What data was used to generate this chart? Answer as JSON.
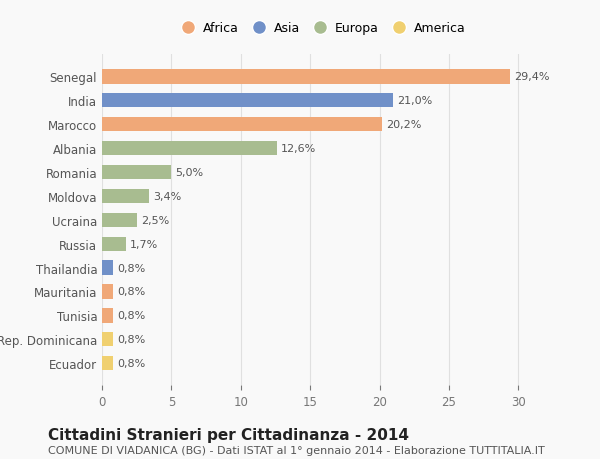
{
  "categories": [
    "Ecuador",
    "Rep. Dominicana",
    "Tunisia",
    "Mauritania",
    "Thailandia",
    "Russia",
    "Ucraina",
    "Moldova",
    "Romania",
    "Albania",
    "Marocco",
    "India",
    "Senegal"
  ],
  "values": [
    0.8,
    0.8,
    0.8,
    0.8,
    0.8,
    1.7,
    2.5,
    3.4,
    5.0,
    12.6,
    20.2,
    21.0,
    29.4
  ],
  "continents": [
    "America",
    "America",
    "Africa",
    "Africa",
    "Asia",
    "Europa",
    "Europa",
    "Europa",
    "Europa",
    "Europa",
    "Africa",
    "Asia",
    "Africa"
  ],
  "labels": [
    "0,8%",
    "0,8%",
    "0,8%",
    "0,8%",
    "0,8%",
    "1,7%",
    "2,5%",
    "3,4%",
    "5,0%",
    "12,6%",
    "20,2%",
    "21,0%",
    "29,4%"
  ],
  "colors": {
    "Africa": "#F0A878",
    "Asia": "#7090C8",
    "Europa": "#A8BC90",
    "America": "#F0D070"
  },
  "legend_order": [
    "Africa",
    "Asia",
    "Europa",
    "America"
  ],
  "title": "Cittadini Stranieri per Cittadinanza - 2014",
  "subtitle": "COMUNE DI VIADANICA (BG) - Dati ISTAT al 1° gennaio 2014 - Elaborazione TUTTITALIA.IT",
  "xlim": [
    0,
    32
  ],
  "xticks": [
    0,
    5,
    10,
    15,
    20,
    25,
    30
  ],
  "background_color": "#f9f9f9",
  "grid_color": "#e0e0e0",
  "bar_height": 0.6,
  "label_fontsize": 8,
  "tick_fontsize": 8.5,
  "title_fontsize": 11,
  "subtitle_fontsize": 8
}
